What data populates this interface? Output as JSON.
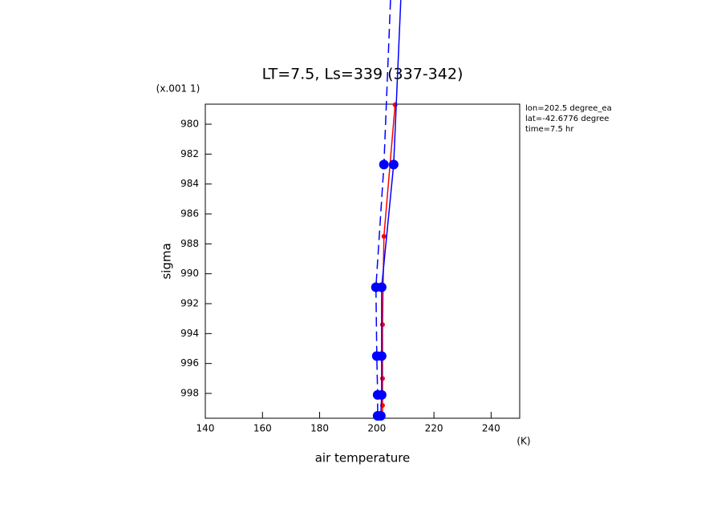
{
  "chart_data": {
    "type": "line",
    "title": "LT=7.5, Ls=339 (337-342)",
    "y_units": "(x.001 1)",
    "x_units": "(K)",
    "x_label": "air temperature",
    "y_label": "sigma",
    "annotations": [
      "lon=202.5 degree_ea",
      "lat=-42.6776 degree",
      "time=7.5 hr"
    ],
    "xlim": [
      140,
      250
    ],
    "xticks": [
      140,
      160,
      180,
      200,
      220,
      240
    ],
    "ylim": [
      999.66,
      978.66
    ],
    "yticks": [
      980,
      982,
      984,
      986,
      988,
      990,
      992,
      994,
      996,
      998
    ],
    "series": [
      {
        "color": "#ff0000",
        "linestyle": "solid",
        "x": [
          206.4,
          202.5,
          202,
          202,
          202,
          202
        ],
        "y": [
          978.7,
          987.5,
          993.4,
          997.0,
          998.8,
          999.6
        ]
      },
      {
        "color": "#0000ff",
        "linestyle": "solid",
        "x": [
          208.4,
          205.9,
          201.7,
          201.7,
          201.7,
          201.4
        ],
        "y": [
          971.7,
          982.7,
          990.9,
          995.5,
          998.1,
          999.5
        ]
      },
      {
        "color": "#0000ff",
        "linestyle": "dashed",
        "x": [
          204.8,
          202.5,
          199.7,
          200,
          200.3,
          200.3
        ],
        "y": [
          971.7,
          982.7,
          990.9,
          995.5,
          998.1,
          999.5
        ]
      }
    ]
  }
}
